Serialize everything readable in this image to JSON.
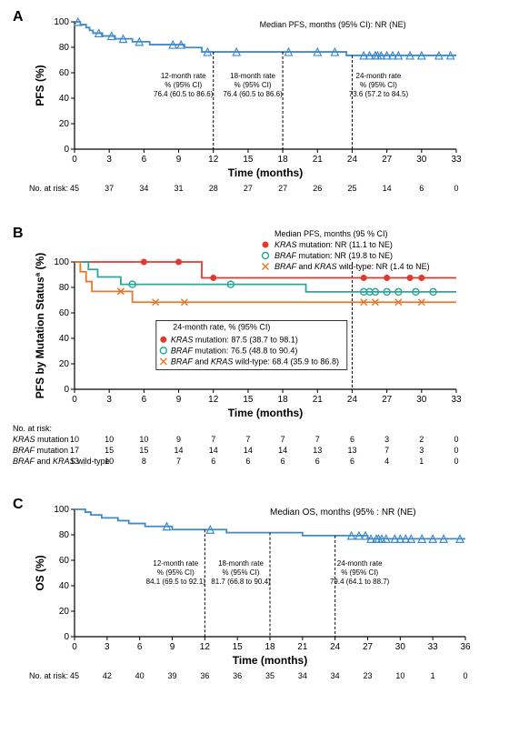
{
  "colors": {
    "blue": "#3e8acc",
    "red": "#e03a2e",
    "teal": "#2aa99a",
    "orange": "#e6792d",
    "black": "#000000",
    "bg": "#ffffff"
  },
  "panelA": {
    "label": "A",
    "ylabel": "PFS (%)",
    "xlabel": "Time (months)",
    "xlim": [
      0,
      33
    ],
    "xtick_step": 3,
    "ylim": [
      0,
      100
    ],
    "ytick_step": 20,
    "median_text": "Median PFS, months (95% CI): NR (NE)",
    "series": {
      "color_key": "blue",
      "steps": [
        [
          0,
          100
        ],
        [
          0.5,
          100
        ],
        [
          0.5,
          97.8
        ],
        [
          1,
          97.8
        ],
        [
          1,
          95.5
        ],
        [
          1.3,
          95.5
        ],
        [
          1.3,
          93.3
        ],
        [
          1.6,
          93.3
        ],
        [
          1.6,
          91.1
        ],
        [
          2.4,
          91.1
        ],
        [
          2.4,
          88.9
        ],
        [
          3.5,
          88.9
        ],
        [
          3.5,
          86.7
        ],
        [
          5,
          86.7
        ],
        [
          5,
          84.4
        ],
        [
          6.5,
          84.4
        ],
        [
          6.5,
          82.1
        ],
        [
          9.5,
          82.1
        ],
        [
          9.5,
          79.8
        ],
        [
          11,
          79.8
        ],
        [
          11,
          76.4
        ],
        [
          23.5,
          76.4
        ],
        [
          23.5,
          73.6
        ],
        [
          33,
          73.6
        ]
      ],
      "censors_x": [
        0.3,
        2.1,
        3.2,
        4.2,
        5.6,
        8.5,
        9.2,
        11.5,
        14,
        18.5,
        21,
        22.5,
        25,
        25.5,
        26,
        26.2,
        26.5,
        27,
        27.5,
        28,
        29,
        30,
        31.5,
        32.5
      ]
    },
    "rate_boxes": [
      {
        "at_x": 12,
        "title": "12-month rate",
        "line2": "% (95% CI)",
        "line3": "76.4 (60.5 to 86.6)"
      },
      {
        "at_x": 18,
        "title": "18-month rate",
        "line2": "% (95% CI)",
        "line3": "76.4 (60.5 to 86.6)"
      },
      {
        "at_x": 24,
        "title": "24-month rate",
        "line2": "% (95% CI)",
        "line3": "73.6 (57.2 to 84.5)"
      }
    ],
    "risk": {
      "label": "No. at risk:",
      "values": [
        45,
        37,
        34,
        31,
        28,
        27,
        27,
        26,
        25,
        14,
        6,
        0
      ]
    }
  },
  "panelB": {
    "label": "B",
    "ylabel": "PFS by Mutation Statusª (%)",
    "xlabel": "Time (months)",
    "xlim": [
      0,
      33
    ],
    "xtick_step": 3,
    "ylim": [
      0,
      100
    ],
    "ytick_step": 20,
    "legend_title": "Median PFS, months (95 % CI)",
    "legend_items": [
      {
        "marker": "filled-circle",
        "color_key": "red",
        "italic": "KRAS",
        "text": " mutation: NR (11.1 to NE)"
      },
      {
        "marker": "open-circle",
        "color_key": "teal",
        "italic": "BRAF",
        "text": " mutation: NR (19.8 to NE)"
      },
      {
        "marker": "x",
        "color_key": "orange",
        "italic": "BRAF",
        "text2": " and ",
        "italic2": "KRAS",
        "text": " wild-type: NR (1.4 to NE)"
      }
    ],
    "dash_x": 24,
    "box24": {
      "title": "24-month rate, % (95% CI)",
      "rows": [
        {
          "marker": "filled-circle",
          "color_key": "red",
          "italic": "KRAS",
          "text": " mutation: 87.5 (38.7 to 98.1)"
        },
        {
          "marker": "open-circle",
          "color_key": "teal",
          "italic": "BRAF",
          "text": " mutation: 76.5 (48.8 to 90.4)"
        },
        {
          "marker": "x",
          "color_key": "orange",
          "italic": "BRAF",
          "text2": " and ",
          "italic2": "KRAS",
          "text": " wild-type: 68.4 (35.9 to 86.8)"
        }
      ]
    },
    "series": [
      {
        "name": "KRAS",
        "color_key": "red",
        "marker": "filled-circle",
        "steps": [
          [
            0,
            100
          ],
          [
            11,
            100
          ],
          [
            11,
            87.5
          ],
          [
            33,
            87.5
          ]
        ],
        "marks_x": [
          6,
          9,
          12,
          25,
          27,
          29,
          30
        ]
      },
      {
        "name": "BRAF",
        "color_key": "teal",
        "marker": "open-circle",
        "steps": [
          [
            0,
            100
          ],
          [
            1.2,
            100
          ],
          [
            1.2,
            94.1
          ],
          [
            2,
            94.1
          ],
          [
            2,
            88.2
          ],
          [
            4,
            88.2
          ],
          [
            4,
            82.4
          ],
          [
            20,
            82.4
          ],
          [
            20,
            76.5
          ],
          [
            33,
            76.5
          ]
        ],
        "marks_x": [
          5,
          13.5,
          25,
          25.5,
          26,
          27,
          28,
          29.5,
          31
        ]
      },
      {
        "name": "WT",
        "color_key": "orange",
        "marker": "x",
        "steps": [
          [
            0,
            100
          ],
          [
            0.5,
            100
          ],
          [
            0.5,
            92.3
          ],
          [
            1,
            92.3
          ],
          [
            1,
            84.6
          ],
          [
            1.5,
            84.6
          ],
          [
            1.5,
            76.9
          ],
          [
            5,
            76.9
          ],
          [
            5,
            68.4
          ],
          [
            33,
            68.4
          ]
        ],
        "marks_x": [
          4,
          7,
          9.5,
          25,
          26,
          28,
          30
        ]
      }
    ],
    "risk": {
      "label": "No. at risk:",
      "rows": [
        {
          "italic": "KRAS",
          "text": " mutation",
          "values": [
            10,
            10,
            10,
            9,
            7,
            7,
            7,
            7,
            6,
            3,
            2,
            0
          ]
        },
        {
          "italic": "BRAF",
          "text": " mutation",
          "values": [
            17,
            15,
            15,
            14,
            14,
            14,
            14,
            13,
            13,
            7,
            3,
            0
          ]
        },
        {
          "italic": "BRAF",
          "text2": " and ",
          "italic2": "KRAS",
          "text": " wild-type",
          "values": [
            13,
            10,
            8,
            7,
            6,
            6,
            6,
            6,
            6,
            4,
            1,
            0
          ]
        }
      ]
    }
  },
  "panelC": {
    "label": "C",
    "ylabel": "OS (%)",
    "xlabel": "Time (months)",
    "xlim": [
      0,
      36
    ],
    "xtick_step": 3,
    "ylim": [
      0,
      100
    ],
    "ytick_step": 20,
    "median_text": "Median OS, months (95% : NR (NE)",
    "series": {
      "color_key": "blue",
      "steps": [
        [
          0,
          100
        ],
        [
          1,
          100
        ],
        [
          1,
          97.8
        ],
        [
          1.5,
          97.8
        ],
        [
          1.5,
          95.6
        ],
        [
          2.5,
          95.6
        ],
        [
          2.5,
          93.3
        ],
        [
          4,
          93.3
        ],
        [
          4,
          91.1
        ],
        [
          5,
          91.1
        ],
        [
          5,
          88.9
        ],
        [
          6.5,
          88.9
        ],
        [
          6.5,
          86.6
        ],
        [
          9,
          86.6
        ],
        [
          9,
          84.1
        ],
        [
          14,
          84.1
        ],
        [
          14,
          81.7
        ],
        [
          21,
          81.7
        ],
        [
          21,
          79.4
        ],
        [
          27,
          79.4
        ],
        [
          27,
          76.9
        ],
        [
          36,
          76.9
        ]
      ],
      "censors_x": [
        8.5,
        12.5,
        25.5,
        26.2,
        26.8,
        27.3,
        27.8,
        28,
        28.3,
        28.7,
        29.5,
        30,
        30.5,
        31,
        32,
        33,
        34,
        35.5
      ]
    },
    "rate_boxes": [
      {
        "at_x": 12,
        "title": "12-month rate",
        "line2": "% (95% CI)",
        "line3": "84.1 (69.5 to 92.1)"
      },
      {
        "at_x": 18,
        "title": "18-month rate",
        "line2": "% (95% CI)",
        "line3": "81.7 (66.8 to 90.4)"
      },
      {
        "at_x": 24,
        "title": "24-month rate",
        "line2": "% (95% CI)",
        "line3": "79.4 (64.1 to 88.7)"
      }
    ],
    "risk": {
      "label": "No. at risk:",
      "values": [
        45,
        42,
        40,
        39,
        36,
        36,
        35,
        34,
        34,
        23,
        10,
        1,
        0
      ]
    }
  }
}
